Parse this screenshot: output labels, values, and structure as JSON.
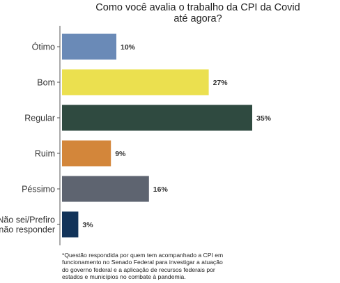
{
  "chart_data": {
    "type": "bar",
    "orientation": "horizontal",
    "title_lines": [
      "Como você avalia o trabalho da CPI da Covid",
      "até agora?"
    ],
    "categories": [
      "Ótimo",
      "Bom",
      "Regular",
      "Ruim",
      "Péssimo",
      "Não sei/Prefiro não responder"
    ],
    "category_label_lines": [
      [
        "Ótimo"
      ],
      [
        "Bom"
      ],
      [
        "Regular"
      ],
      [
        "Ruim"
      ],
      [
        "Péssimo"
      ],
      [
        "Não sei/Prefiro",
        "não responder"
      ]
    ],
    "values": [
      10,
      27,
      35,
      9,
      16,
      3
    ],
    "value_labels": [
      "10%",
      "27%",
      "35%",
      "9%",
      "16%",
      "3%"
    ],
    "colors": [
      "#6a8ab7",
      "#ebe04f",
      "#2f4a40",
      "#d3863a",
      "#5e6470",
      "#123359"
    ],
    "xlim": [
      0,
      35
    ],
    "grid": false,
    "legend": "none"
  },
  "footnote_lines": [
    "*Questão respondida por quem tem acompanhado a CPI em",
    "funcionamento no Senado Federal para investigar a atuação",
    "do governo federal e a aplicação de recursos federais por",
    "estados e municípios no combate à pandemia."
  ]
}
